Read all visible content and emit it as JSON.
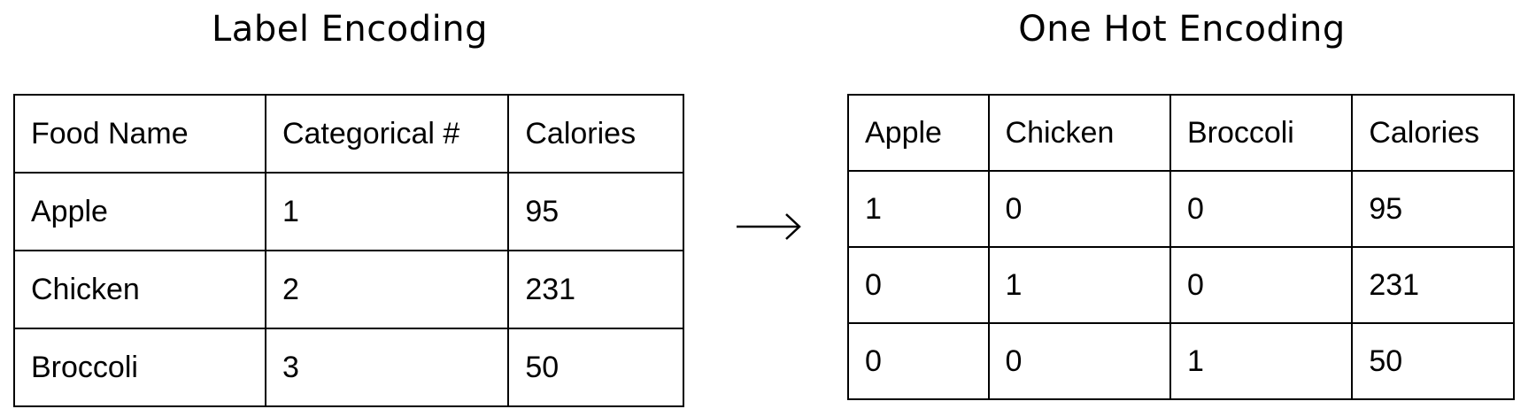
{
  "label_encoding": {
    "title": "Label Encoding",
    "headers": [
      "Food Name",
      "Categorical #",
      "Calories"
    ],
    "rows": [
      [
        "Apple",
        "1",
        "95"
      ],
      [
        "Chicken",
        "2",
        "231"
      ],
      [
        "Broccoli",
        "3",
        "50"
      ]
    ]
  },
  "one_hot_encoding": {
    "title": "One Hot Encoding",
    "headers": [
      "Apple",
      "Chicken",
      "Broccoli",
      "Calories"
    ],
    "rows": [
      [
        "1",
        "0",
        "0",
        "95"
      ],
      [
        "0",
        "1",
        "0",
        "231"
      ],
      [
        "0",
        "0",
        "1",
        "50"
      ]
    ]
  },
  "arrow_icon": "right-arrow-icon"
}
